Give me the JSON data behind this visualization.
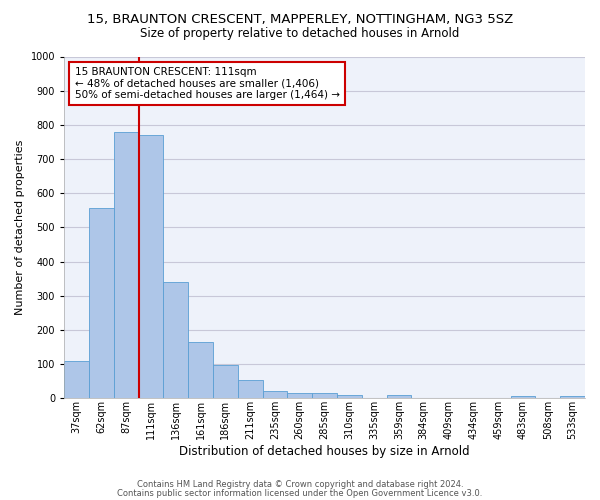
{
  "title_line1": "15, BRAUNTON CRESCENT, MAPPERLEY, NOTTINGHAM, NG3 5SZ",
  "title_line2": "Size of property relative to detached houses in Arnold",
  "xlabel": "Distribution of detached houses by size in Arnold",
  "ylabel": "Number of detached properties",
  "categories": [
    "37sqm",
    "62sqm",
    "87sqm",
    "111sqm",
    "136sqm",
    "161sqm",
    "186sqm",
    "211sqm",
    "235sqm",
    "260sqm",
    "285sqm",
    "310sqm",
    "335sqm",
    "359sqm",
    "384sqm",
    "409sqm",
    "434sqm",
    "459sqm",
    "483sqm",
    "508sqm",
    "533sqm"
  ],
  "values": [
    110,
    558,
    778,
    770,
    340,
    165,
    98,
    53,
    20,
    14,
    14,
    10,
    0,
    10,
    0,
    0,
    0,
    0,
    5,
    0,
    5
  ],
  "bar_color": "#aec6e8",
  "bar_edge_color": "#5a9fd4",
  "vline_index": 3,
  "vline_color": "#cc0000",
  "annotation_text": "15 BRAUNTON CRESCENT: 111sqm\n← 48% of detached houses are smaller (1,406)\n50% of semi-detached houses are larger (1,464) →",
  "annotation_box_color": "#cc0000",
  "annotation_text_color": "#000000",
  "ylim": [
    0,
    1000
  ],
  "yticks": [
    0,
    100,
    200,
    300,
    400,
    500,
    600,
    700,
    800,
    900,
    1000
  ],
  "footer_line1": "Contains HM Land Registry data © Crown copyright and database right 2024.",
  "footer_line2": "Contains public sector information licensed under the Open Government Licence v3.0.",
  "background_color": "#ffffff",
  "ax_background_color": "#eef2fa",
  "grid_color": "#c8c8d8",
  "title1_fontsize": 9.5,
  "title2_fontsize": 8.5,
  "ylabel_fontsize": 8.0,
  "xlabel_fontsize": 8.5,
  "tick_fontsize": 7.0,
  "ann_fontsize": 7.5,
  "footer_fontsize": 6.0
}
